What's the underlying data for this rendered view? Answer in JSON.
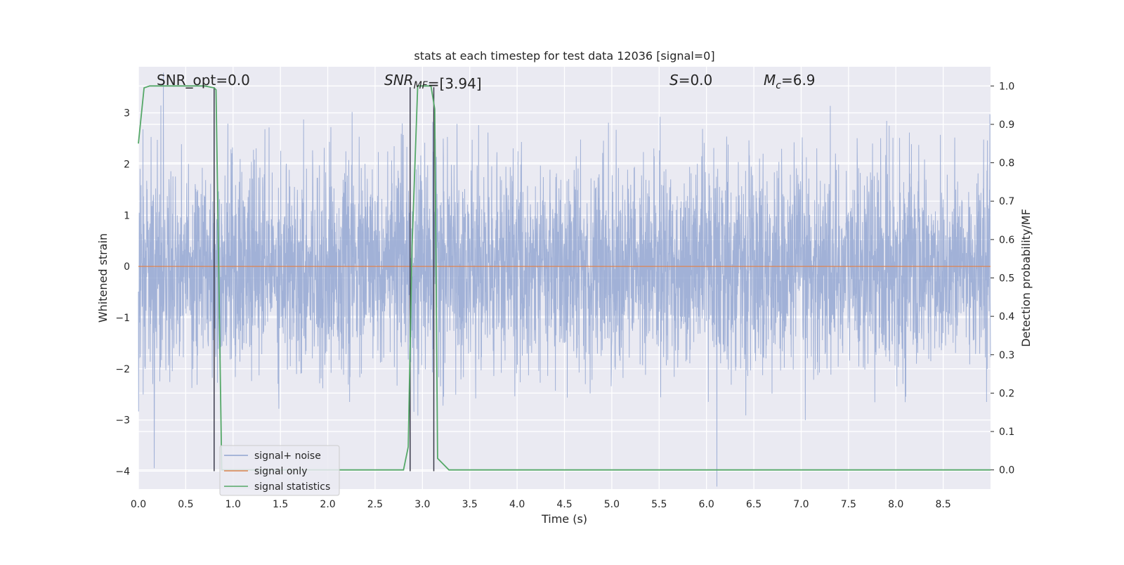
{
  "chart_data": {
    "type": "line",
    "title": "stats at each timestep for test data 12036 [signal=0]",
    "xlabel": "Time (s)",
    "ylabel": "Whitened strain",
    "y2label": "Detection probability/MF",
    "xlim": [
      0.0,
      9.0
    ],
    "ylim": [
      -4.35,
      3.9
    ],
    "y2lim": [
      -0.05,
      1.05
    ],
    "xticks": [
      "0.0",
      "0.5",
      "1.0",
      "1.5",
      "2.0",
      "2.5",
      "3.0",
      "3.5",
      "4.0",
      "4.5",
      "5.0",
      "5.5",
      "6.0",
      "6.5",
      "7.0",
      "7.5",
      "8.0",
      "8.5"
    ],
    "yticks": [
      "−4",
      "−3",
      "−2",
      "−1",
      "0",
      "1",
      "2",
      "3"
    ],
    "y2ticks": [
      "0.0",
      "0.1",
      "0.2",
      "0.3",
      "0.4",
      "0.5",
      "0.6",
      "0.7",
      "0.8",
      "0.9",
      "1.0"
    ],
    "grid": true,
    "legend_position": "lower-left",
    "annotations": [
      {
        "id": "snr-opt",
        "text": "SNR_opt=0.0"
      },
      {
        "id": "snr-mf",
        "prefix": "SNR",
        "sub": "MF",
        "suffix": "=[3.94]"
      },
      {
        "id": "s-value",
        "prefix": "S",
        "sub": "",
        "suffix": "=0.0"
      },
      {
        "id": "mc-value",
        "prefix": "M",
        "sub": "c",
        "suffix": "=6.9"
      }
    ],
    "vertical_markers": {
      "color": "#3a3a4a",
      "segments": [
        {
          "x": 0.8,
          "y_from": -4.0,
          "y_to": 3.5
        },
        {
          "x": 2.87,
          "y_from": -4.0,
          "y_to": 3.5
        },
        {
          "x": 3.12,
          "y_from": -4.0,
          "y_to": 3.5
        }
      ]
    },
    "series": [
      {
        "name": "signal+ noise",
        "axis": "left",
        "color": "#8fa3cf",
        "kind": "noise",
        "t_range": [
          0.0,
          9.0
        ],
        "n_samples": 4096,
        "sigma": 1.0
      },
      {
        "name": "signal only",
        "axis": "left",
        "color": "#dd8452",
        "x": [
          0.0,
          9.0
        ],
        "y": [
          0.0,
          0.0
        ]
      },
      {
        "name": "signal statistics",
        "axis": "right",
        "color": "#55a868",
        "x": [
          0.0,
          0.06,
          0.12,
          0.3,
          0.5,
          0.7,
          0.8,
          0.82,
          0.88,
          0.95,
          1.2,
          2.0,
          2.8,
          2.85,
          2.89,
          2.95,
          3.0,
          3.06,
          3.09,
          3.13,
          3.16,
          3.2,
          3.28,
          4.0,
          5.0,
          6.0,
          7.0,
          8.0,
          9.0
        ],
        "y": [
          0.85,
          0.995,
          1.0,
          1.0,
          1.0,
          1.0,
          0.995,
          0.99,
          0.0,
          0.0,
          0.0,
          0.0,
          0.0,
          0.06,
          0.58,
          1.0,
          1.0,
          1.0,
          1.0,
          0.94,
          0.03,
          0.02,
          0.0,
          0.0,
          0.0,
          0.0,
          0.0,
          0.0,
          0.0
        ]
      }
    ]
  }
}
